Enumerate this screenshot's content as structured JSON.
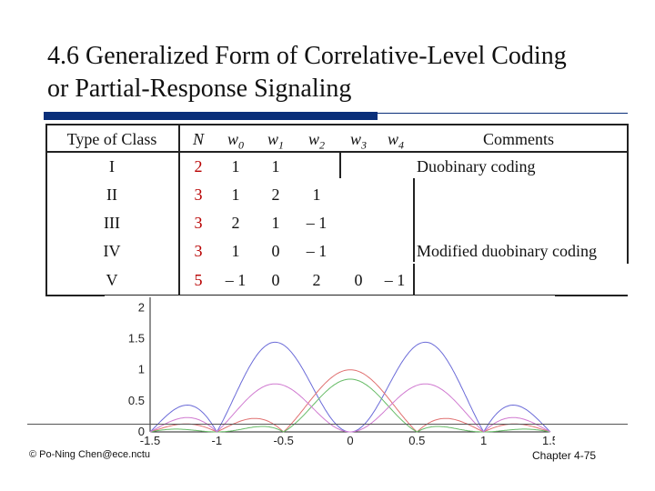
{
  "slide": {
    "title_line1": "4.6 Generalized Form of Correlative-Level Coding",
    "title_line2": "or Partial-Response Signaling"
  },
  "table": {
    "header": {
      "type": "Type of Class",
      "n": "N",
      "w0": "w",
      "w0_sub": "0",
      "w1": "w",
      "w1_sub": "1",
      "w2": "w",
      "w2_sub": "2",
      "w3": "w",
      "w3_sub": "3",
      "w4": "w",
      "w4_sub": "4",
      "comments": "Comments"
    },
    "rows": [
      {
        "type": "I",
        "n": "2",
        "w0": "1",
        "w1": "1",
        "w2": "",
        "w3": "",
        "w4": "",
        "comment": "Duobinary coding"
      },
      {
        "type": "II",
        "n": "3",
        "w0": "1",
        "w1": "2",
        "w2": "1",
        "w3": "",
        "w4": "",
        "comment": ""
      },
      {
        "type": "III",
        "n": "3",
        "w0": "2",
        "w1": "1",
        "w2": "– 1",
        "w3": "",
        "w4": "",
        "comment": ""
      },
      {
        "type": "IV",
        "n": "3",
        "w0": "1",
        "w1": "0",
        "w2": "– 1",
        "w3": "",
        "w4": "",
        "comment": "Modified duobinary coding"
      },
      {
        "type": "V",
        "n": "5",
        "w0": "– 1",
        "w1": "0",
        "w2": "2",
        "w3": "0",
        "w4": "– 1",
        "comment": ""
      }
    ]
  },
  "plot": {
    "y_ticks": [
      "0",
      "0.5",
      "1",
      "1.5",
      "2"
    ],
    "x_ticks": [
      "-1.5",
      "-1",
      "-0.5",
      "0",
      "0.5",
      "1",
      "1.5"
    ],
    "colors": {
      "blue": "#6b6bd8",
      "red": "#e07070",
      "green": "#66bb66",
      "magenta": "#d07ad0"
    }
  },
  "footer": {
    "left": "© Po-Ning Chen@ece.nctu",
    "right": "Chapter 4-75"
  }
}
